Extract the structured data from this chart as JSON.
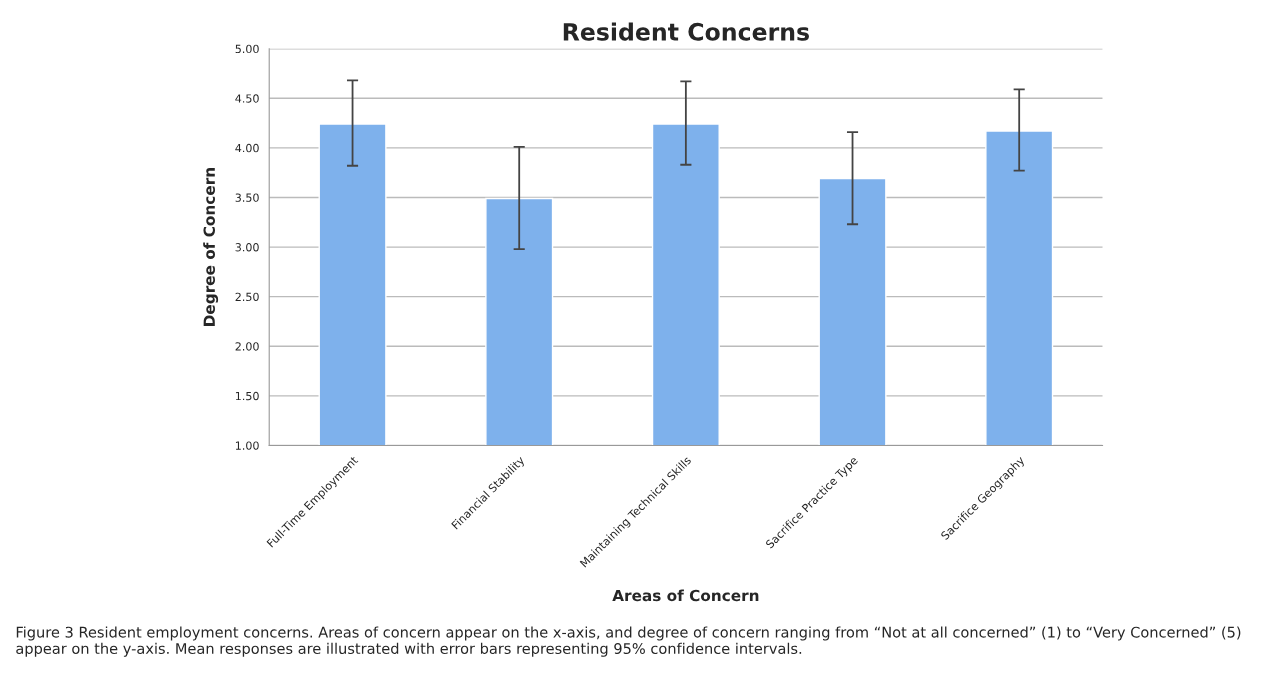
{
  "chart_data": {
    "type": "bar",
    "title": "Resident Concerns",
    "xlabel": "Areas of Concern",
    "ylabel": "Degree of Concern",
    "categories": [
      "Full-Time Employment",
      "Financial Stability",
      "Maintaining Technical Skills",
      "Sacrifice Practice Type",
      "Sacrifice Geography"
    ],
    "values": [
      4.24,
      3.49,
      4.24,
      3.69,
      4.17
    ],
    "errors": [
      [
        3.82,
        4.68
      ],
      [
        2.98,
        4.01
      ],
      [
        3.83,
        4.67
      ],
      [
        3.23,
        4.16
      ],
      [
        3.77,
        4.59
      ]
    ],
    "color": "#7eb1ec",
    "ylim": [
      1,
      5
    ],
    "yticks": [
      {
        "value": 1,
        "label": "1.00"
      },
      {
        "value": 1.5,
        "label": "1.50"
      },
      {
        "value": 2,
        "label": "2.00"
      },
      {
        "value": 2.5,
        "label": "2.50"
      },
      {
        "value": 3,
        "label": "3.00"
      },
      {
        "value": 3.5,
        "label": "3.50"
      },
      {
        "value": 4,
        "label": "4.00"
      },
      {
        "value": 4.5,
        "label": "4.50"
      },
      {
        "value": 5,
        "label": "5.00"
      }
    ],
    "grid": "y",
    "annotations": [
      "Figure 3 Resident employment concerns. Areas of concern appear on the x-axis, and degree of concern ranging from “Not at all concerned” (1) to “Very Concerned” (5) appear on the y-axis. Mean responses are illustrated with error bars representing 95% confidence intervals."
    ]
  }
}
